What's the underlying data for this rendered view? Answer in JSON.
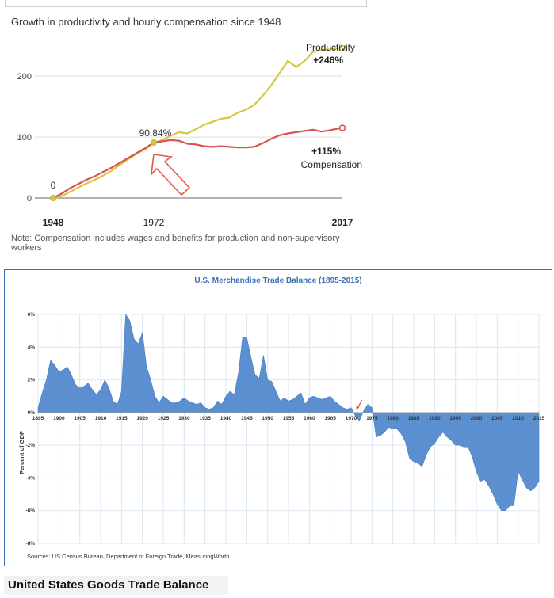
{
  "chart_data": [
    {
      "type": "line",
      "title": "Growth in productivity and hourly compensation since 1948",
      "xlabel": "",
      "ylabel": "",
      "xlim": [
        1948,
        2017
      ],
      "ylim": [
        0,
        260
      ],
      "yticks": [
        0,
        100,
        200
      ],
      "xticks": [
        1948,
        1972,
        2017
      ],
      "grid": true,
      "series": [
        {
          "name": "Productivity",
          "color": "#d4c840",
          "x": [
            1948,
            1950,
            1952,
            1954,
            1956,
            1958,
            1960,
            1962,
            1964,
            1966,
            1968,
            1970,
            1972,
            1974,
            1976,
            1978,
            1980,
            1982,
            1984,
            1986,
            1988,
            1990,
            1992,
            1994,
            1996,
            1998,
            2000,
            2002,
            2004,
            2006,
            2008,
            2010,
            2012,
            2014,
            2016,
            2017
          ],
          "values": [
            0,
            3,
            10,
            17,
            24,
            30,
            37,
            45,
            55,
            64,
            73,
            80,
            91,
            95,
            102,
            108,
            106,
            113,
            120,
            125,
            130,
            132,
            140,
            145,
            153,
            168,
            185,
            205,
            225,
            215,
            225,
            240,
            243,
            244,
            246,
            246
          ]
        },
        {
          "name": "Compensation",
          "color": "#d9534f",
          "x": [
            1948,
            1950,
            1952,
            1954,
            1956,
            1958,
            1960,
            1962,
            1964,
            1966,
            1968,
            1970,
            1972,
            1974,
            1976,
            1978,
            1980,
            1982,
            1984,
            1986,
            1988,
            1990,
            1992,
            1994,
            1996,
            1998,
            2000,
            2002,
            2004,
            2006,
            2008,
            2010,
            2012,
            2014,
            2016,
            2017
          ],
          "values": [
            0,
            7,
            16,
            23,
            30,
            36,
            43,
            50,
            58,
            66,
            74,
            82,
            91,
            93,
            95,
            94,
            89,
            88,
            85,
            84,
            85,
            84,
            83,
            83,
            84,
            90,
            97,
            103,
            106,
            108,
            110,
            112,
            109,
            111,
            114,
            115
          ]
        }
      ],
      "annotations": [
        {
          "text": "0",
          "x": 1948,
          "y": 0
        },
        {
          "text": "90.84%",
          "x": 1972,
          "y": 91
        },
        {
          "text": "Productivity",
          "x": 2017,
          "y": 246
        },
        {
          "text": "+246%",
          "x": 2017,
          "y": 246
        },
        {
          "text": "+115%",
          "x": 2017,
          "y": 115
        },
        {
          "text": "Compensation",
          "x": 2017,
          "y": 115
        }
      ]
    },
    {
      "type": "area",
      "title": "U.S. Merchandise Trade Balance (1895-2015)",
      "xlabel": "",
      "ylabel": "Percent of GDP",
      "xlim": [
        1895,
        2015
      ],
      "ylim": [
        -8,
        6
      ],
      "yticks": [
        -8,
        -6,
        -4,
        -2,
        0,
        2,
        4,
        6
      ],
      "ytick_labels": [
        "-8%",
        "-6%",
        "-4%",
        "-2%",
        "0%",
        "2%",
        "4%",
        "6%"
      ],
      "xticks": [
        1895,
        1900,
        1905,
        1910,
        1915,
        1920,
        1925,
        1930,
        1935,
        1940,
        1945,
        1950,
        1955,
        1960,
        1965,
        1970,
        1975,
        1980,
        1985,
        1990,
        1995,
        2000,
        2005,
        2010,
        2015
      ],
      "grid": true,
      "color": "#5b8fd0",
      "x": [
        1895,
        1896,
        1897,
        1898,
        1899,
        1900,
        1901,
        1902,
        1903,
        1904,
        1905,
        1906,
        1907,
        1908,
        1909,
        1910,
        1911,
        1912,
        1913,
        1914,
        1915,
        1916,
        1917,
        1918,
        1919,
        1920,
        1921,
        1922,
        1923,
        1924,
        1925,
        1926,
        1927,
        1928,
        1929,
        1930,
        1931,
        1932,
        1933,
        1934,
        1935,
        1936,
        1937,
        1938,
        1939,
        1940,
        1941,
        1942,
        1943,
        1944,
        1945,
        1946,
        1947,
        1948,
        1949,
        1950,
        1951,
        1952,
        1953,
        1954,
        1955,
        1956,
        1957,
        1958,
        1959,
        1960,
        1961,
        1962,
        1963,
        1964,
        1965,
        1966,
        1967,
        1968,
        1969,
        1970,
        1971,
        1972,
        1973,
        1974,
        1975,
        1976,
        1977,
        1978,
        1979,
        1980,
        1981,
        1982,
        1983,
        1984,
        1985,
        1986,
        1987,
        1988,
        1989,
        1990,
        1991,
        1992,
        1993,
        1994,
        1995,
        1996,
        1997,
        1998,
        1999,
        2000,
        2001,
        2002,
        2003,
        2004,
        2005,
        2006,
        2007,
        2008,
        2009,
        2010,
        2011,
        2012,
        2013,
        2014,
        2015
      ],
      "values": [
        0.3,
        1.2,
        2.0,
        3.2,
        2.9,
        2.5,
        2.6,
        2.8,
        2.3,
        1.7,
        1.5,
        1.6,
        1.8,
        1.4,
        1.1,
        1.4,
        2.0,
        1.5,
        0.7,
        0.5,
        1.3,
        6.0,
        5.6,
        4.5,
        4.2,
        4.9,
        2.8,
        2.0,
        1.0,
        0.6,
        1.0,
        0.8,
        0.6,
        0.6,
        0.7,
        0.9,
        0.7,
        0.6,
        0.5,
        0.6,
        0.3,
        0.2,
        0.3,
        0.7,
        0.5,
        1.0,
        1.3,
        1.1,
        2.4,
        4.6,
        4.6,
        3.4,
        2.3,
        2.1,
        3.5,
        2.0,
        1.9,
        1.3,
        0.7,
        0.9,
        0.7,
        0.8,
        1.0,
        1.2,
        0.5,
        0.9,
        1.0,
        0.9,
        0.8,
        0.9,
        1.0,
        0.7,
        0.5,
        0.3,
        0.2,
        0.3,
        -0.2,
        -0.5,
        0.1,
        0.5,
        0.3,
        -1.5,
        -1.4,
        -1.2,
        -0.9,
        -1.0,
        -1.0,
        -1.3,
        -1.8,
        -2.8,
        -3.0,
        -3.1,
        -3.3,
        -2.6,
        -2.1,
        -1.9,
        -1.5,
        -1.2,
        -1.5,
        -1.7,
        -2.0,
        -2.0,
        -2.1,
        -2.1,
        -2.7,
        -3.6,
        -4.2,
        -4.1,
        -4.5,
        -5.0,
        -5.6,
        -6.0,
        -6.0,
        -5.7,
        -5.7,
        -3.6,
        -4.1,
        -4.6,
        -4.8,
        -4.6,
        -4.2
      ]
    }
  ],
  "chart1": {
    "title": "Growth in productivity and hourly compensation since 1948",
    "label_zero": "0",
    "label_mid": "90.84%",
    "label_prod_name": "Productivity",
    "label_prod_value": "+246%",
    "label_comp_value": "+115%",
    "label_comp_name": "Compensation",
    "note": "Note: Compensation includes wages and benefits for production and non-supervisory workers"
  },
  "chart2": {
    "title": "U.S. Merchandise Trade Balance (1895-2015)",
    "ylabel": "Percent of GDP",
    "source": "Sources: US Census Bureau, Department of Foreign Trade, MeasuringWorth"
  },
  "footer": {
    "label": "United States Goods Trade Balance"
  }
}
